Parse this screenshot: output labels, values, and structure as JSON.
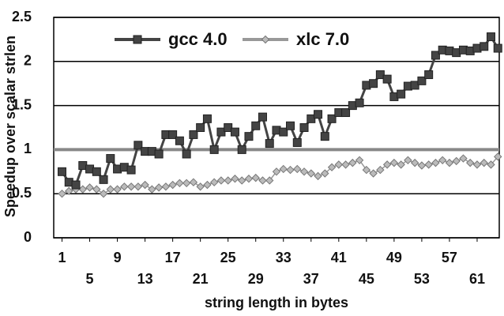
{
  "chart_data": {
    "type": "line",
    "x_label": "string length in bytes",
    "y_label": "Speedup over scalar strlen",
    "x": [
      1,
      2,
      3,
      4,
      5,
      6,
      7,
      8,
      9,
      10,
      11,
      12,
      13,
      14,
      15,
      16,
      17,
      18,
      19,
      20,
      21,
      22,
      23,
      24,
      25,
      26,
      27,
      28,
      29,
      30,
      31,
      32,
      33,
      34,
      35,
      36,
      37,
      38,
      39,
      40,
      41,
      42,
      43,
      44,
      45,
      46,
      47,
      48,
      49,
      50,
      51,
      52,
      53,
      54,
      55,
      56,
      57,
      58,
      59,
      60,
      61,
      62,
      63,
      64
    ],
    "series": [
      {
        "name": "gcc 4.0",
        "color": "#444444",
        "marker": "square",
        "values": [
          0.75,
          0.63,
          0.6,
          0.82,
          0.78,
          0.75,
          0.66,
          0.9,
          0.78,
          0.8,
          0.77,
          1.05,
          0.98,
          0.98,
          0.95,
          1.17,
          1.17,
          1.1,
          0.95,
          1.17,
          1.25,
          1.35,
          1.0,
          1.2,
          1.25,
          1.2,
          1.0,
          1.15,
          1.27,
          1.37,
          1.07,
          1.22,
          1.2,
          1.27,
          1.08,
          1.25,
          1.35,
          1.4,
          1.15,
          1.35,
          1.42,
          1.42,
          1.5,
          1.53,
          1.73,
          1.75,
          1.85,
          1.8,
          1.6,
          1.63,
          1.72,
          1.73,
          1.78,
          1.85,
          2.07,
          2.13,
          2.12,
          2.1,
          2.13,
          2.12,
          2.15,
          2.17,
          2.28,
          2.15
        ]
      },
      {
        "name": "xlc 7.0",
        "color": "#999999",
        "marker": "diamond",
        "values": [
          0.5,
          0.53,
          0.55,
          0.55,
          0.57,
          0.55,
          0.5,
          0.55,
          0.55,
          0.58,
          0.58,
          0.58,
          0.6,
          0.55,
          0.57,
          0.58,
          0.6,
          0.62,
          0.62,
          0.63,
          0.58,
          0.6,
          0.63,
          0.65,
          0.65,
          0.67,
          0.65,
          0.67,
          0.68,
          0.65,
          0.65,
          0.75,
          0.78,
          0.77,
          0.78,
          0.75,
          0.73,
          0.7,
          0.73,
          0.8,
          0.83,
          0.83,
          0.85,
          0.88,
          0.77,
          0.73,
          0.77,
          0.83,
          0.85,
          0.83,
          0.88,
          0.85,
          0.82,
          0.83,
          0.85,
          0.88,
          0.85,
          0.87,
          0.9,
          0.85,
          0.83,
          0.85,
          0.83,
          0.92
        ]
      }
    ],
    "reference_line": 1,
    "xlim": [
      -0.2,
      64.2
    ],
    "xticks": [
      1,
      5,
      9,
      13,
      17,
      21,
      25,
      29,
      33,
      37,
      41,
      45,
      49,
      53,
      57,
      61
    ],
    "ylim": [
      0,
      2.5
    ],
    "yticks": [
      0,
      0.5,
      1,
      1.5,
      2,
      2.5
    ],
    "grid": true
  }
}
